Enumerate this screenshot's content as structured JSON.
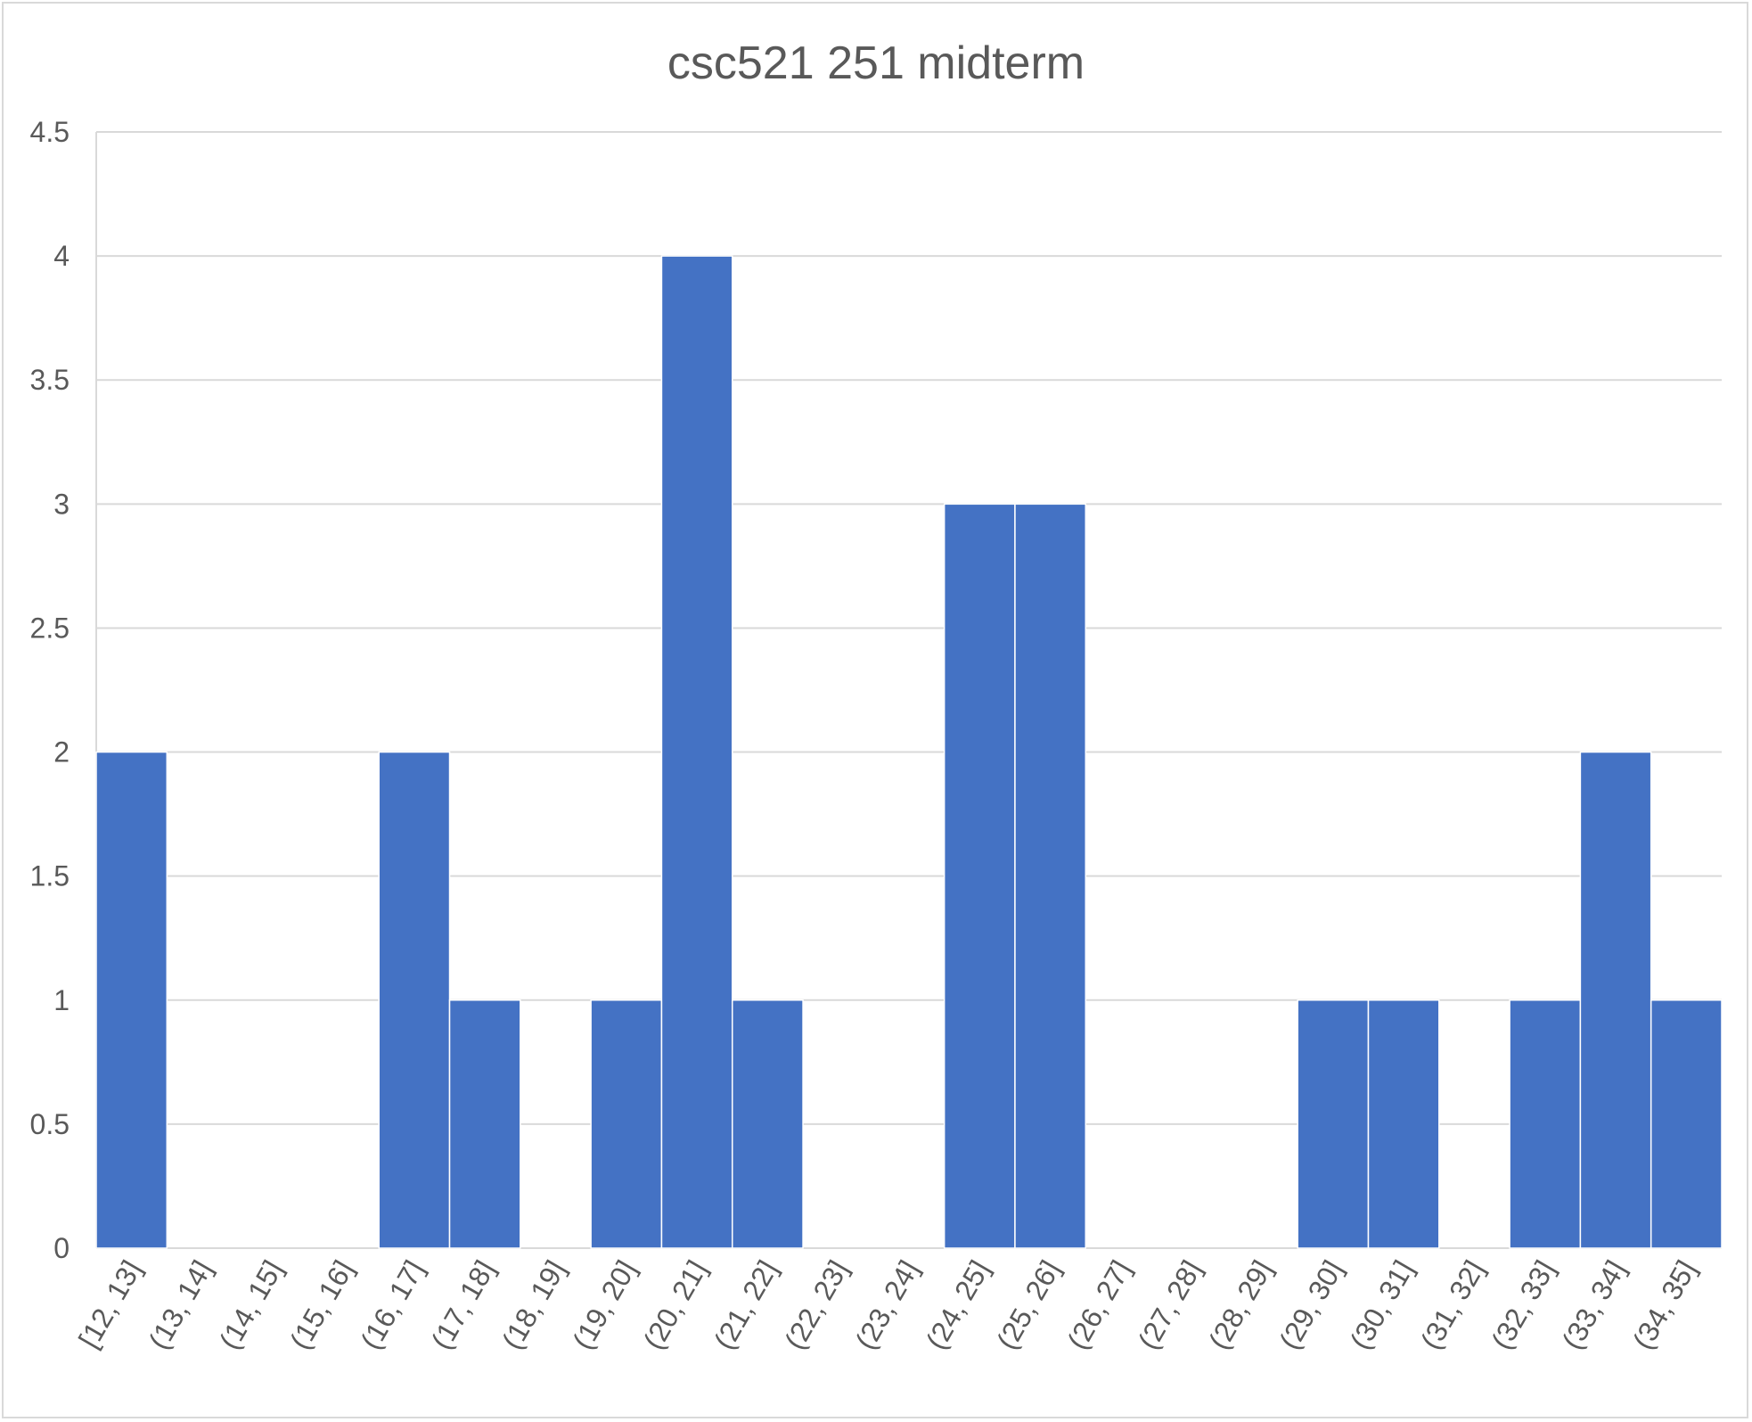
{
  "chart_data": {
    "type": "bar",
    "title": "csc521 251 midterm",
    "xlabel": "",
    "ylabel": "",
    "categories": [
      "[12, 13]",
      "(13, 14]",
      "(14, 15]",
      "(15, 16]",
      "(16, 17]",
      "(17, 18]",
      "(18, 19]",
      "(19, 20]",
      "(20, 21]",
      "(21, 22]",
      "(22, 23]",
      "(23, 24]",
      "(24, 25]",
      "(25, 26]",
      "(26, 27]",
      "(27, 28]",
      "(28, 29]",
      "(29, 30]",
      "(30, 31]",
      "(31, 32]",
      "(32, 33]",
      "(33, 34]",
      "(34, 35]"
    ],
    "values": [
      2,
      0,
      0,
      0,
      2,
      1,
      0,
      1,
      4,
      1,
      0,
      0,
      3,
      3,
      0,
      0,
      0,
      1,
      1,
      0,
      1,
      2,
      1
    ],
    "ylim": [
      0,
      4.5
    ],
    "yticks": [
      0,
      0.5,
      1,
      1.5,
      2,
      2.5,
      3,
      3.5,
      4,
      4.5
    ],
    "grid": true,
    "legend": "none",
    "bar_color": "#4472C4",
    "gridline_color": "#d9d9d9",
    "text_color": "#595959"
  }
}
